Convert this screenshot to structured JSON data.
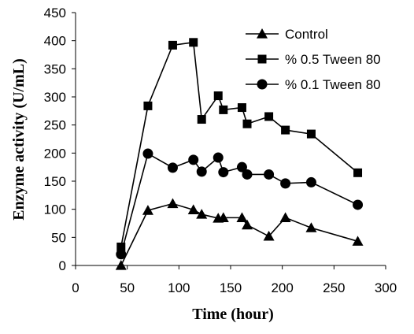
{
  "chart_data": {
    "type": "line",
    "xlabel": "Time (hour)",
    "ylabel": "Enzyme activity (U/mL)",
    "xlim": [
      0,
      300
    ],
    "ylim": [
      0,
      450
    ],
    "xticks": [
      0,
      50,
      100,
      150,
      200,
      250,
      300
    ],
    "yticks": [
      0,
      50,
      100,
      150,
      200,
      250,
      300,
      350,
      400,
      450
    ],
    "grid": false,
    "legend_position": "top-right",
    "series": [
      {
        "name": "Control",
        "marker": "triangle",
        "color": "#000000",
        "points": [
          [
            44,
            0
          ],
          [
            70,
            98
          ],
          [
            94,
            110
          ],
          [
            114,
            99
          ],
          [
            122,
            91
          ],
          [
            138,
            84
          ],
          [
            143,
            85
          ],
          [
            161,
            85
          ],
          [
            166,
            72
          ],
          [
            187,
            52
          ],
          [
            203,
            85
          ],
          [
            228,
            67
          ],
          [
            273,
            43
          ]
        ]
      },
      {
        "name": "% 0.5 Tween 80",
        "marker": "square",
        "color": "#000000",
        "points": [
          [
            44,
            33
          ],
          [
            70,
            284
          ],
          [
            94,
            392
          ],
          [
            114,
            397
          ],
          [
            122,
            260
          ],
          [
            138,
            302
          ],
          [
            143,
            277
          ],
          [
            161,
            281
          ],
          [
            166,
            252
          ],
          [
            187,
            265
          ],
          [
            203,
            241
          ],
          [
            228,
            234
          ],
          [
            273,
            165
          ]
        ]
      },
      {
        "name": "% 0.1 Tween 80",
        "marker": "circle",
        "color": "#000000",
        "points": [
          [
            44,
            20
          ],
          [
            70,
            199
          ],
          [
            94,
            174
          ],
          [
            114,
            188
          ],
          [
            122,
            167
          ],
          [
            138,
            192
          ],
          [
            143,
            166
          ],
          [
            161,
            175
          ],
          [
            166,
            162
          ],
          [
            187,
            162
          ],
          [
            203,
            146
          ],
          [
            228,
            148
          ],
          [
            273,
            108
          ]
        ]
      }
    ]
  }
}
